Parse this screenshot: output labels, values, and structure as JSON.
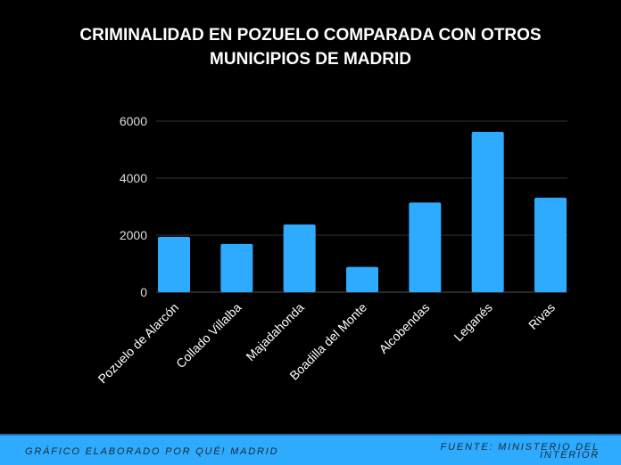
{
  "chart_data": {
    "type": "bar",
    "title": "CRIMINALIDAD EN POZUELO COMPARADA CON OTROS MUNICIPIOS DE MADRID",
    "title_lines": [
      "CRIMINALIDAD EN POZUELO COMPARADA CON OTROS",
      "MUNICIPIOS DE MADRID"
    ],
    "categories": [
      "Pozuelo de Alarcón",
      "Collado Villalba",
      "Majadahonda",
      "Boadilla del Monte",
      "Alcobendas",
      "Leganés",
      "Rivas"
    ],
    "values": [
      1940,
      1690,
      2375,
      885,
      3145,
      5625,
      3315
    ],
    "ylim": [
      0,
      6000
    ],
    "yticks": [
      0,
      2000,
      4000,
      6000
    ],
    "grid": true,
    "bar_color": "#2eabff",
    "background": "#000000"
  },
  "footer": {
    "left": "GRÁFICO ELABORADO POR QUÉ! MADRID",
    "right_lines": [
      "FUENTE: MINISTERIO DEL",
      "INTERIOR"
    ]
  }
}
